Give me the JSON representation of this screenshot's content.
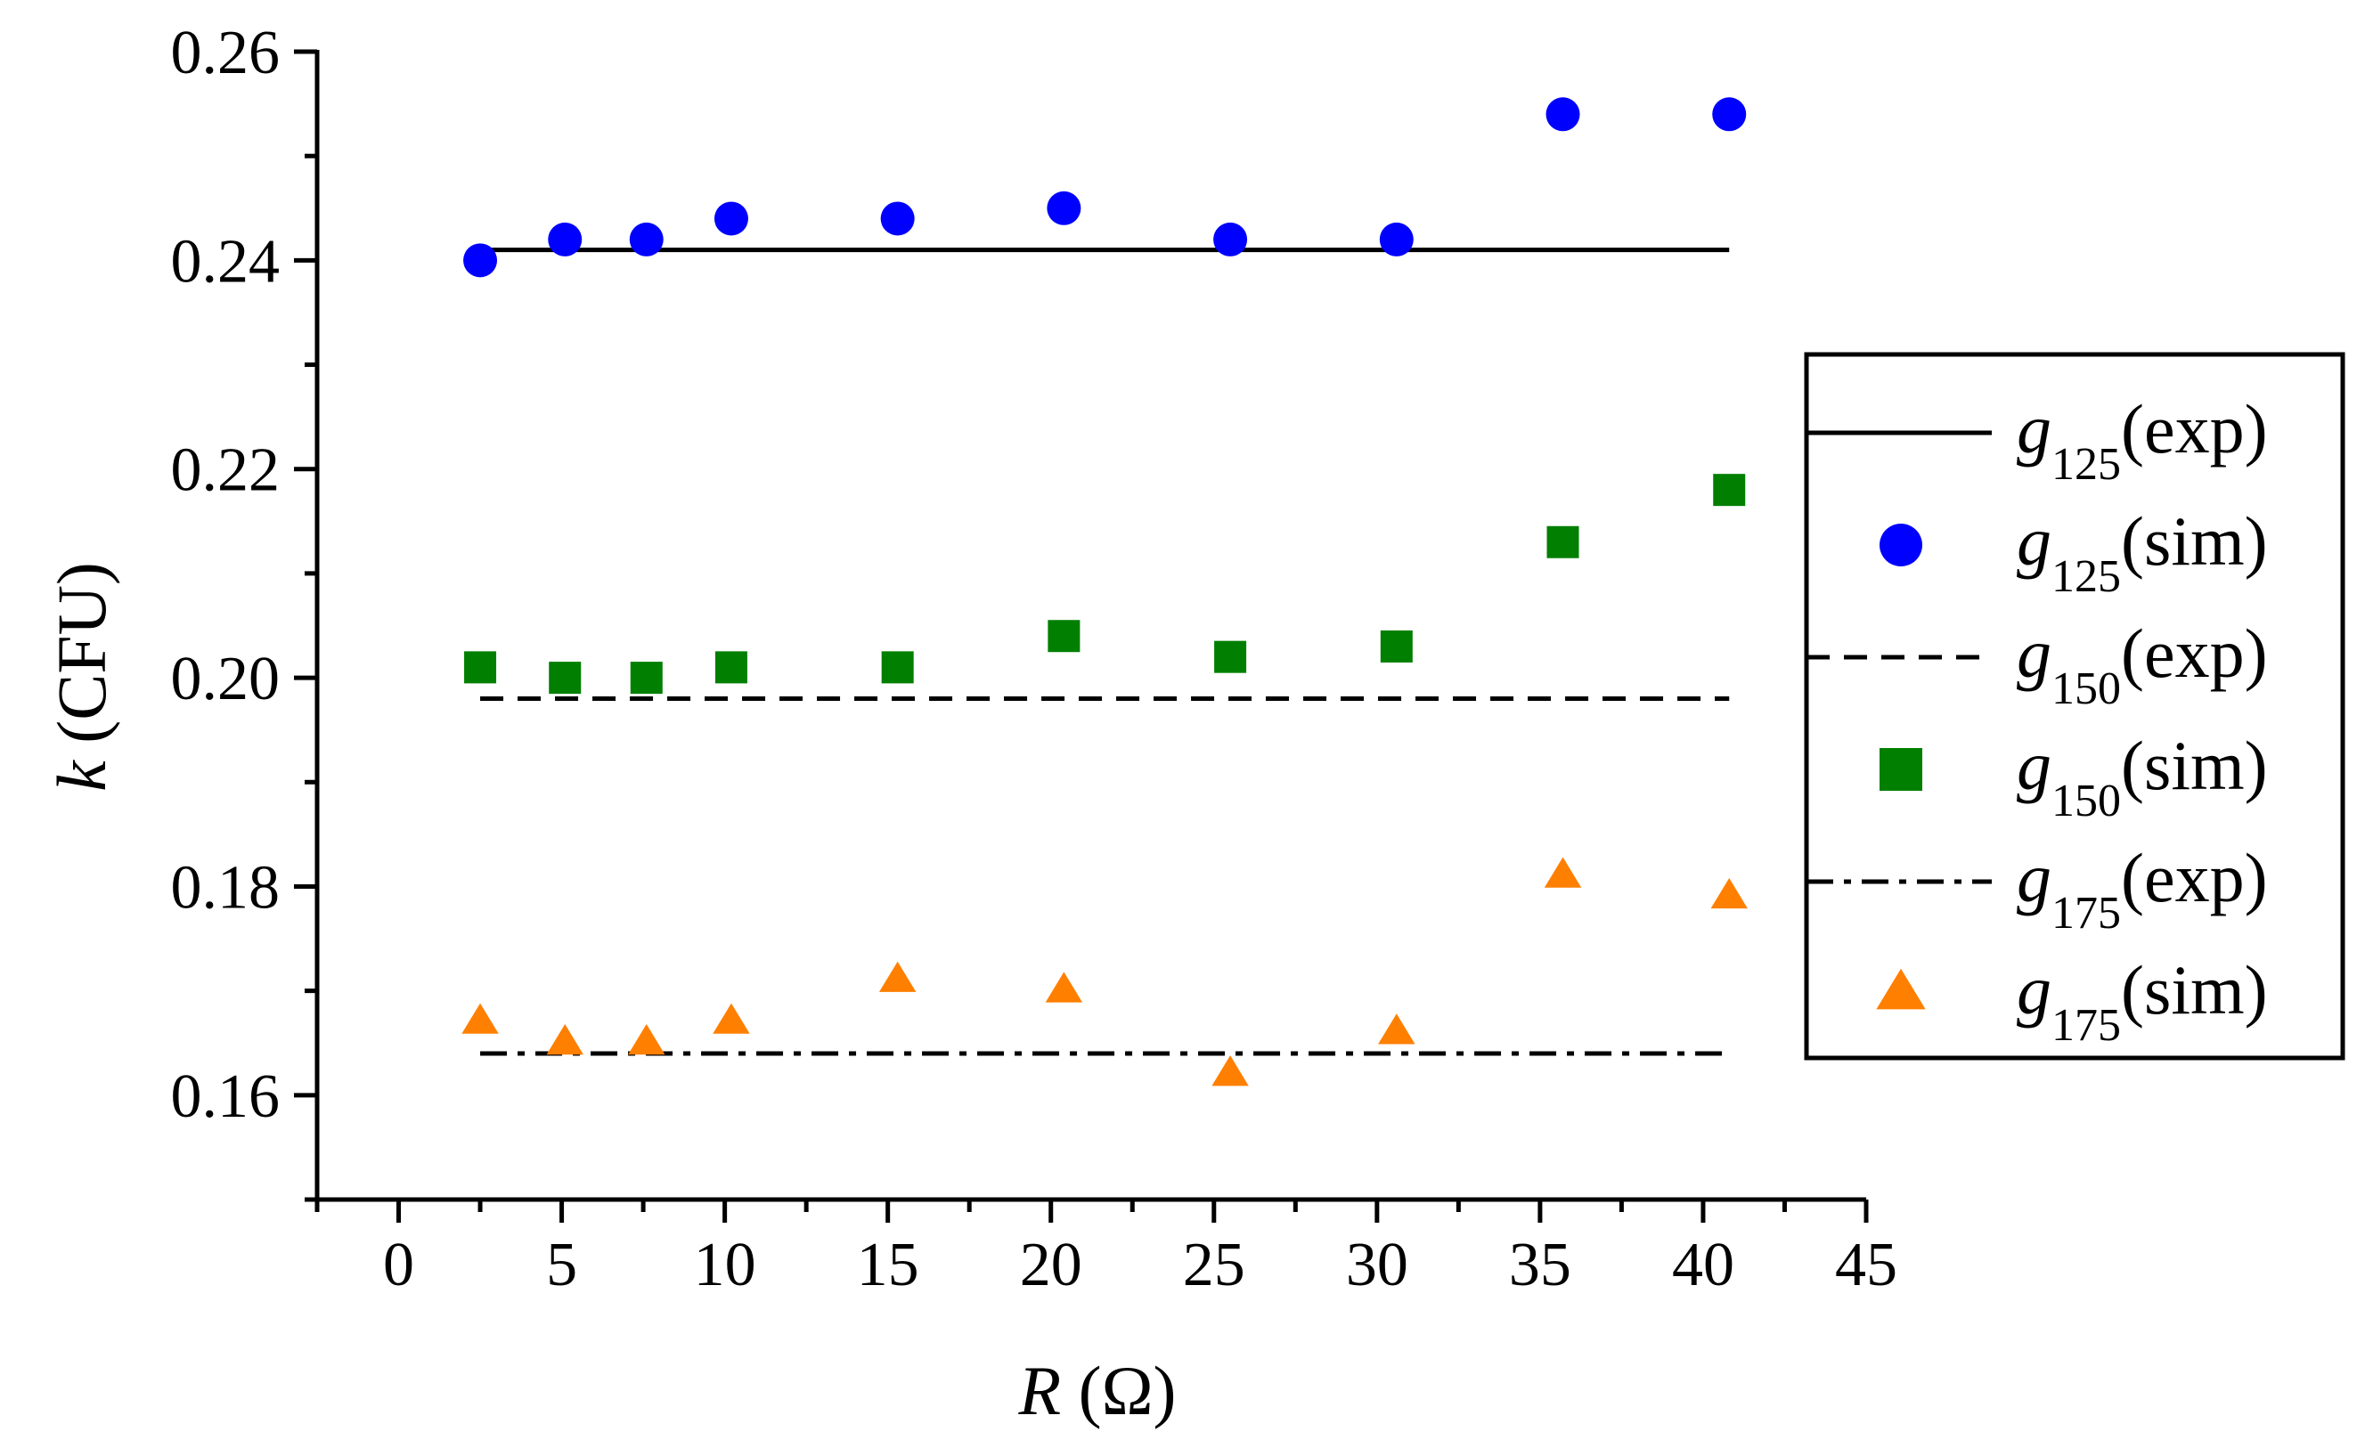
{
  "chart_data": {
    "type": "scatter",
    "title": "",
    "xlabel": {
      "var": "R",
      "unit": " (Ω)"
    },
    "ylabel": {
      "var": "k",
      "unit": " (CFU)"
    },
    "xlim": [
      -2.5,
      45
    ],
    "ylim": [
      0.15,
      0.26
    ],
    "xticks": [
      0,
      5,
      10,
      15,
      20,
      25,
      30,
      35,
      40,
      45
    ],
    "xtick_labels": [
      "0",
      "5",
      "10",
      "15",
      "20",
      "25",
      "30",
      "35",
      "40",
      "45"
    ],
    "yticks": [
      0.16,
      0.18,
      0.2,
      0.22,
      0.24,
      0.26
    ],
    "ytick_labels": [
      "0.16",
      "0.18",
      "0.20",
      "0.22",
      "0.24",
      "0.26"
    ],
    "x": [
      2.5,
      5.1,
      7.6,
      10.2,
      15.3,
      20.4,
      25.5,
      30.6,
      35.7,
      40.8
    ],
    "series": [
      {
        "id": "g125-exp",
        "name": "g",
        "sub": "125",
        "suffix": "(exp)",
        "kind": "line",
        "style": "solid",
        "color": "#000000",
        "x": [
          2.5,
          40.8
        ],
        "values": [
          0.241,
          0.241
        ]
      },
      {
        "id": "g125-sim",
        "name": "g",
        "sub": "125",
        "suffix": "(sim)",
        "kind": "marker",
        "marker": "circle",
        "color": "#0000ff",
        "values": [
          0.24,
          0.242,
          0.242,
          0.244,
          0.244,
          0.245,
          0.242,
          0.242,
          0.254,
          0.254
        ]
      },
      {
        "id": "g150-exp",
        "name": "g",
        "sub": "150",
        "suffix": "(exp)",
        "kind": "line",
        "style": "dash",
        "color": "#000000",
        "x": [
          2.5,
          40.8
        ],
        "values": [
          0.198,
          0.198
        ]
      },
      {
        "id": "g150-sim",
        "name": "g",
        "sub": "150",
        "suffix": "(sim)",
        "kind": "marker",
        "marker": "square",
        "color": "#007f00",
        "values": [
          0.201,
          0.2,
          0.2,
          0.201,
          0.201,
          0.204,
          0.202,
          0.203,
          0.213,
          0.218
        ]
      },
      {
        "id": "g175-exp",
        "name": "g",
        "sub": "175",
        "suffix": "(exp)",
        "kind": "line",
        "style": "dashdot",
        "color": "#000000",
        "x": [
          2.5,
          40.8
        ],
        "values": [
          0.164,
          0.164
        ]
      },
      {
        "id": "g175-sim",
        "name": "g",
        "sub": "175",
        "suffix": "(sim)",
        "kind": "marker",
        "marker": "triangle",
        "color": "#ff7f00",
        "values": [
          0.167,
          0.165,
          0.165,
          0.167,
          0.171,
          0.17,
          0.162,
          0.166,
          0.181,
          0.179
        ]
      }
    ],
    "legend_position": "right"
  }
}
